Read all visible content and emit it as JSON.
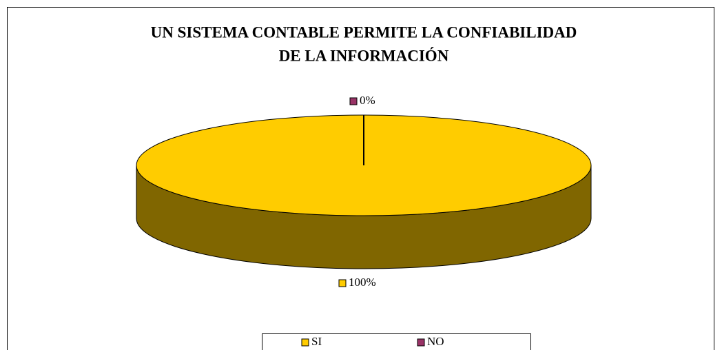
{
  "chart_data": {
    "type": "pie",
    "title": [
      "UN SISTEMA CONTABLE PERMITE LA CONFIABILIDAD",
      "DE LA INFORMACIÓN"
    ],
    "categories": [
      "SI",
      "NO"
    ],
    "values": [
      100,
      0
    ],
    "value_labels": [
      "100%",
      "0%"
    ],
    "colors": [
      "#ffcc00",
      "#993366"
    ],
    "legend": "bottom"
  }
}
